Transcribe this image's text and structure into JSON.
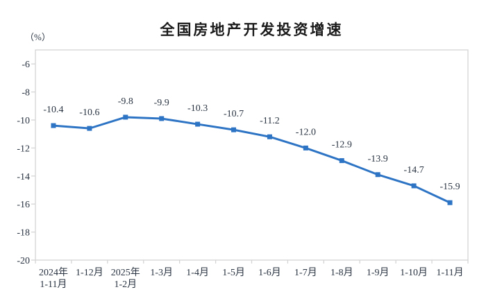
{
  "chart_data": {
    "type": "line",
    "title": "全国房地产开发投资增速",
    "ylabel": "（%）",
    "xlabel": "",
    "categories": [
      "2024年\n1-11月",
      "1-12月",
      "2025年\n1-2月",
      "1-3月",
      "1-4月",
      "1-5月",
      "1-6月",
      "1-7月",
      "1-8月",
      "1-9月",
      "1-10月",
      "1-11月"
    ],
    "values": [
      -10.4,
      -10.6,
      -9.8,
      -9.9,
      -10.3,
      -10.7,
      -11.2,
      -12.0,
      -12.9,
      -13.9,
      -14.7,
      -15.9
    ],
    "data_labels": [
      "-10.4",
      "-10.6",
      "-9.8",
      "-9.9",
      "-10.3",
      "-10.7",
      "-11.2",
      "-12.0",
      "-12.9",
      "-13.9",
      "-14.7",
      "-15.9"
    ],
    "ylim": [
      -20,
      -5
    ],
    "yticks": [
      -6,
      -8,
      -10,
      -12,
      -14,
      -16,
      -18,
      -20
    ],
    "grid": false,
    "legend_position": "none",
    "marker": "square",
    "colors": {
      "series": "#2e74c5",
      "text": "#2a3442",
      "axis": "#d4d4d4",
      "background": "#ffffff"
    }
  }
}
